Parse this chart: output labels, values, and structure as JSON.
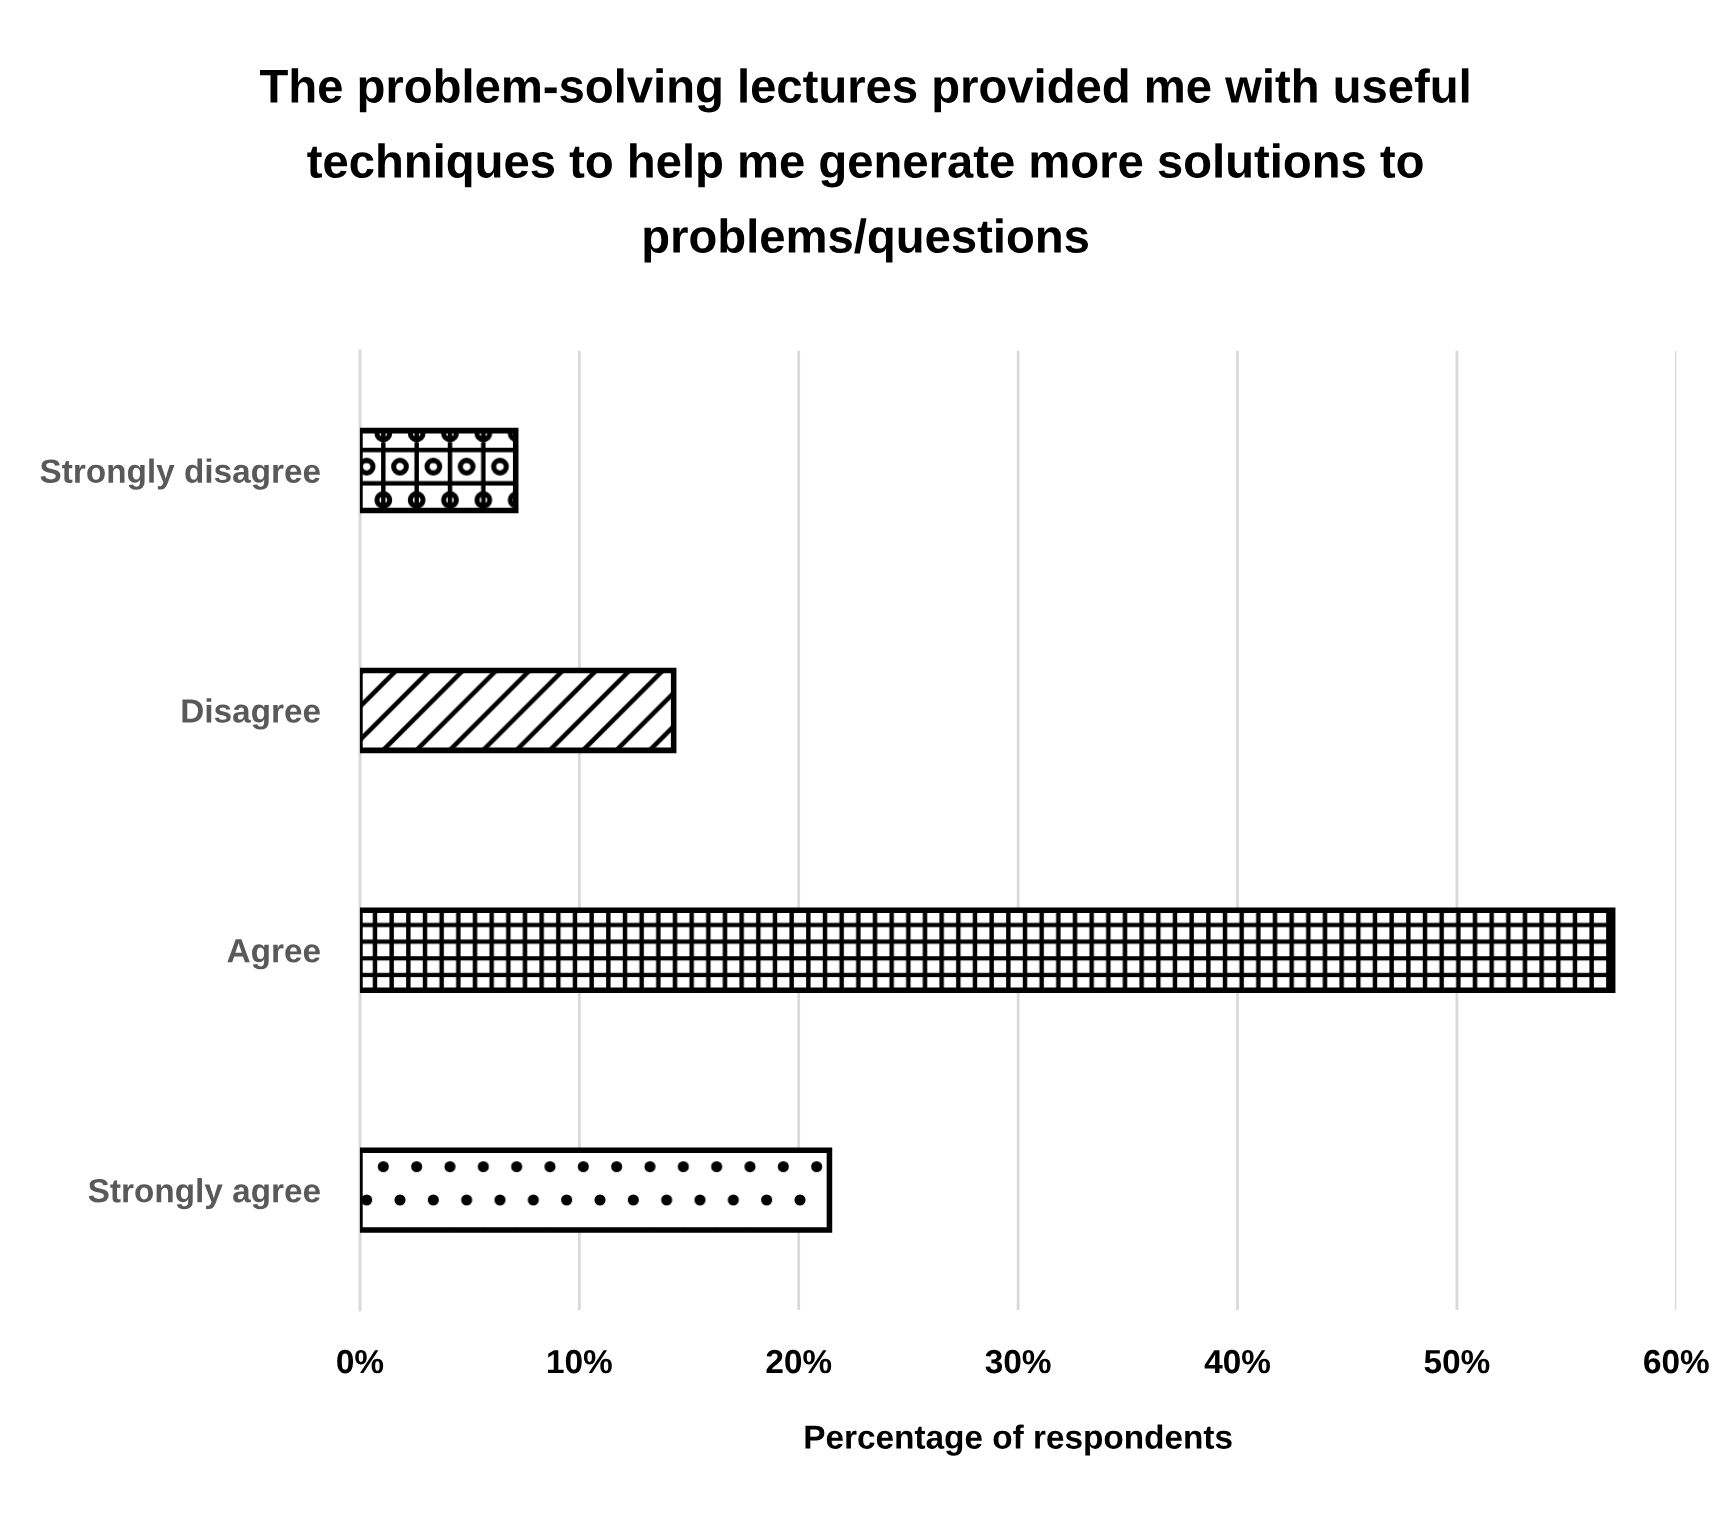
{
  "chart_data": {
    "type": "bar",
    "orientation": "horizontal",
    "title": "The problem-solving lectures provided me with useful\ntechniques to help me generate more solutions to\nproblems/questions",
    "xlabel": "Percentage of respondents",
    "categories": [
      "Strongly disagree",
      "Disagree",
      "Agree",
      "Strongly agree"
    ],
    "values": [
      7.1,
      14.3,
      57.1,
      21.4
    ],
    "xlim": [
      0,
      60
    ],
    "xticks": [
      {
        "value": 0,
        "label": "0%"
      },
      {
        "value": 10,
        "label": "10%"
      },
      {
        "value": 20,
        "label": "20%"
      },
      {
        "value": 30,
        "label": "30%"
      },
      {
        "value": 40,
        "label": "40%"
      },
      {
        "value": 50,
        "label": "50%"
      },
      {
        "value": 60,
        "label": "60%"
      }
    ],
    "grid": "x"
  }
}
